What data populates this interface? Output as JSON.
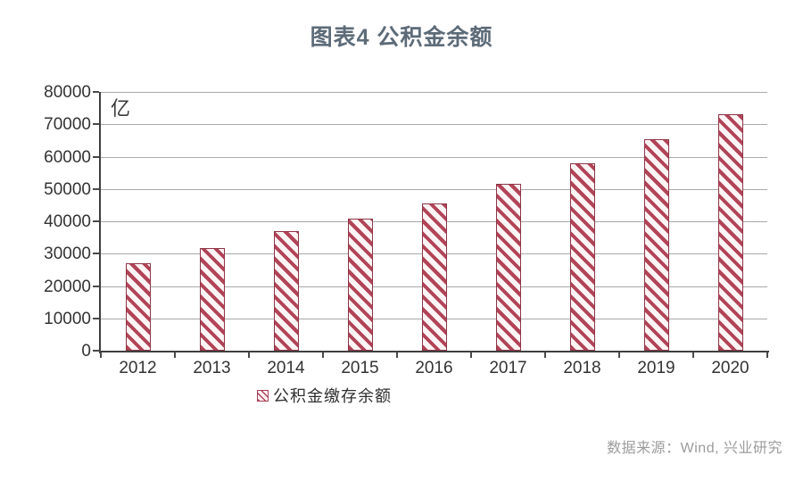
{
  "header": {
    "title": "图表4 公积金余额"
  },
  "chart_data": {
    "type": "bar",
    "title": "图表4 公积金余额",
    "unit_label": "亿",
    "categories": [
      "2012",
      "2013",
      "2014",
      "2015",
      "2016",
      "2017",
      "2018",
      "2019",
      "2020"
    ],
    "series": [
      {
        "name": "公积金缴存余额",
        "values": [
          26900,
          31700,
          37000,
          40800,
          45600,
          51500,
          57900,
          65400,
          73100
        ]
      }
    ],
    "xlabel": "",
    "ylabel": "亿",
    "ylim": [
      0,
      80000
    ],
    "ytick_step": 10000,
    "ytick_labels": [
      "0",
      "10000",
      "20000",
      "30000",
      "40000",
      "50000",
      "60000",
      "70000",
      "80000"
    ],
    "grid": true,
    "legend_position": "bottom",
    "colors": {
      "stripe": "#b24458",
      "bar_background": "#fdf4f5",
      "bar_border": "#8f3547",
      "gridline": "#a9a9a9",
      "axis": "#3f3f3f",
      "tick_label": "#333333",
      "title": "#5d6b78",
      "legend_text": "#2f2f2f",
      "source_text": "#9c9c9c"
    }
  },
  "legend": {
    "label": "公积金缴存余额"
  },
  "footer": {
    "source": "数据来源：Wind, 兴业研究"
  }
}
